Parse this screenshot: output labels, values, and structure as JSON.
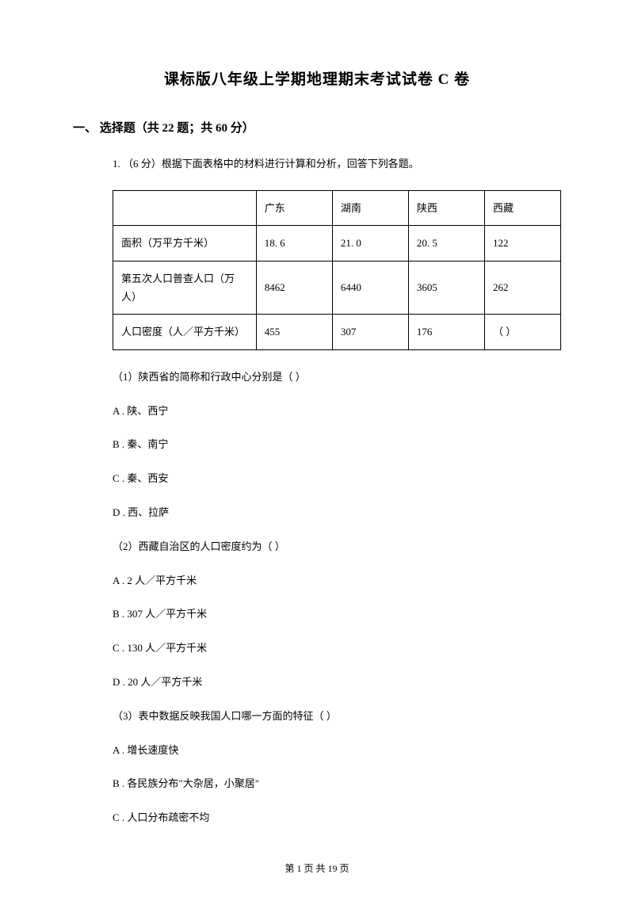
{
  "title": "课标版八年级上学期地理期末考试试卷 C 卷",
  "section": {
    "label": "一、 选择题（共 22 题；共 60 分）"
  },
  "question": {
    "intro": "1.  （6 分）根据下面表格中的材料进行计算和分析，回答下列各题。",
    "table": {
      "header": [
        "",
        "广东",
        "湖南",
        "陕西",
        "西藏"
      ],
      "rows": [
        [
          "面积（万平方千米）",
          "18.  6",
          "21.  0",
          "20.  5",
          "122"
        ],
        [
          "第五次人口普查人口（万人）",
          "8462",
          "6440",
          "3605",
          "262"
        ],
        [
          "人口密度（人／平方千米）",
          "455",
          "307",
          "176",
          "（      ）"
        ]
      ]
    },
    "subquestions": [
      {
        "text": "（1）陕西省的简称和行政中心分别是（      ）",
        "options": [
          "A .  陕、西宁",
          "B .  秦、南宁",
          "C .  秦、西安",
          "D .  西、拉萨"
        ]
      },
      {
        "text": "（2）西藏自治区的人口密度约为（      ）",
        "options": [
          "A .  2 人／平方千米",
          "B .  307 人／平方千米",
          "C .  130 人／平方千米",
          "D .  20 人／平方千米"
        ]
      },
      {
        "text": "（3）表中数据反映我国人口哪一方面的特征（      ）",
        "options": [
          "A .  增长速度快",
          "B .  各民族分布\"大杂居，小聚居\"",
          "C .  人口分布疏密不均"
        ]
      }
    ]
  },
  "footer": "第  1  页  共  19  页"
}
